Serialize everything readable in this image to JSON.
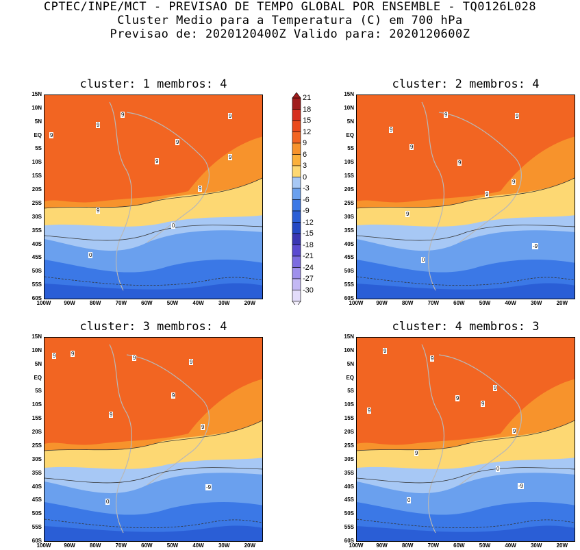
{
  "header": {
    "line1": "CPTEC/INPE/MCT - PREVISAO DE TEMPO GLOBAL POR ENSEMBLE - TQ0126L028",
    "line2": "Cluster Medio para a Temperatura (C) em 700 hPa",
    "line3": "Previsao de: 2020120400Z   Valido para: 2020120600Z"
  },
  "lat_ticks": [
    "15N",
    "10N",
    "5N",
    "EQ",
    "5S",
    "10S",
    "15S",
    "20S",
    "25S",
    "30S",
    "35S",
    "40S",
    "45S",
    "50S",
    "55S",
    "60S"
  ],
  "lon_ticks": [
    "100W",
    "90W",
    "80W",
    "70W",
    "60W",
    "50W",
    "40W",
    "30W",
    "20W"
  ],
  "colorbar": {
    "levels": [
      "21",
      "18",
      "15",
      "12",
      "9",
      "6",
      "3",
      "0",
      "-3",
      "-6",
      "-9",
      "-12",
      "-15",
      "-18",
      "-21",
      "-24",
      "-27",
      "-30"
    ],
    "colors": [
      "#a01d1d",
      "#d62f1f",
      "#ea4a1c",
      "#f26522",
      "#f7932c",
      "#fbb03b",
      "#fdd873",
      "#a7c8f5",
      "#6aa0ee",
      "#3b78e6",
      "#2a5ed6",
      "#2448c4",
      "#3a36b3",
      "#5a4ad0",
      "#7c6ce0",
      "#9f90ec",
      "#c3b8f4",
      "#e3dcfa"
    ]
  },
  "panels": [
    {
      "title": "cluster: 1   membros: 4",
      "labels": [
        "9",
        "9",
        "9",
        "9",
        "9",
        "9",
        "9",
        "9",
        "9",
        "0",
        "0"
      ]
    },
    {
      "title": "cluster: 2   membros: 4",
      "labels": [
        "9",
        "9",
        "9",
        "9",
        "9",
        "9",
        "9",
        "9",
        "0",
        "-9"
      ]
    },
    {
      "title": "cluster: 3   membros: 4",
      "labels": [
        "9",
        "9",
        "9",
        "9",
        "9",
        "9",
        "9",
        "0",
        "-9"
      ]
    },
    {
      "title": "cluster: 4   membros: 3",
      "labels": [
        "9",
        "9",
        "9",
        "9",
        "9",
        "9",
        "9",
        "9",
        "0",
        "0",
        "-9"
      ]
    }
  ]
}
